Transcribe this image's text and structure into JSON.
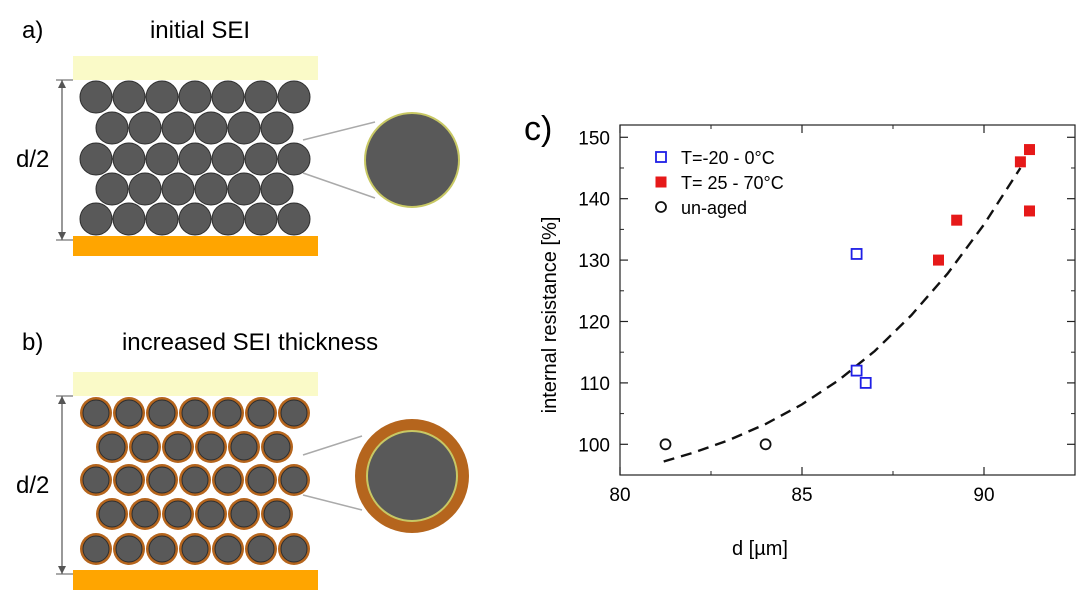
{
  "panel_a": {
    "letter": "a)",
    "title": "initial SEI",
    "dim_label": "d/2"
  },
  "panel_b": {
    "letter": "b)",
    "title": "increased SEI thickness",
    "dim_label": "d/2"
  },
  "colors": {
    "particle": "#595959",
    "particle_outline": "#2e2e2e",
    "sei_shell": "#b5651d",
    "top_current_collector": "#fafac8",
    "bottom_current_collector": "#ffa500",
    "series_low_temp": "#1f1fe6",
    "series_high_temp": "#e61919",
    "series_unaged": "#111111"
  },
  "chart_data": {
    "type": "scatter",
    "panel_letter": "c)",
    "xlabel": "d [µm]",
    "ylabel": "internal resistance [%]",
    "xlim": [
      80,
      92.5
    ],
    "ylim": [
      95,
      152
    ],
    "x_ticks": [
      80,
      85,
      90
    ],
    "y_ticks": [
      100,
      110,
      120,
      130,
      140,
      150
    ],
    "legend_position": "top-left",
    "grid": false,
    "series": [
      {
        "name": "T=-20 - 0°C",
        "marker": "open-square",
        "color": "#1f1fe6",
        "points": [
          [
            86.5,
            131
          ],
          [
            86.5,
            112
          ],
          [
            86.75,
            110
          ]
        ]
      },
      {
        "name": "T= 25 - 70°C",
        "marker": "filled-square",
        "color": "#e61919",
        "points": [
          [
            88.75,
            130
          ],
          [
            89.25,
            136.5
          ],
          [
            91.0,
            146
          ],
          [
            91.25,
            148
          ],
          [
            91.25,
            138
          ]
        ]
      },
      {
        "name": "un-aged",
        "marker": "open-circle",
        "color": "#111111",
        "points": [
          [
            81.25,
            100
          ],
          [
            84.0,
            100
          ]
        ]
      }
    ],
    "fit": {
      "style": "dashed",
      "color": "#111111",
      "points": [
        [
          81.2,
          97.2
        ],
        [
          82,
          98.6
        ],
        [
          83,
          100.7
        ],
        [
          84,
          103.3
        ],
        [
          85,
          106.5
        ],
        [
          86,
          110.4
        ],
        [
          87,
          115.2
        ],
        [
          88,
          121.0
        ],
        [
          89,
          127.8
        ],
        [
          90,
          135.8
        ],
        [
          91,
          145.0
        ]
      ]
    }
  }
}
